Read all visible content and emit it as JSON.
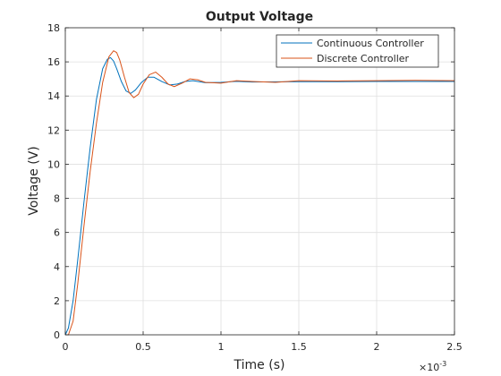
{
  "chart_data": {
    "type": "line",
    "title": "Output Voltage",
    "xlabel": "Time (s)",
    "ylabel": "Voltage (V)",
    "x_exponent_label": "×10",
    "x_exponent_power": "-3",
    "xlim": [
      0,
      2.5
    ],
    "ylim": [
      0,
      18
    ],
    "x_ticks": [
      0,
      0.5,
      1,
      1.5,
      2,
      2.5
    ],
    "x_tick_labels": [
      "0",
      "0.5",
      "1",
      "1.5",
      "2",
      "2.5"
    ],
    "y_ticks": [
      0,
      2,
      4,
      6,
      8,
      10,
      12,
      14,
      16,
      18
    ],
    "y_tick_labels": [
      "0",
      "2",
      "4",
      "6",
      "8",
      "10",
      "12",
      "14",
      "16",
      "18"
    ],
    "grid": true,
    "legend_position": "top-right",
    "series": [
      {
        "name": "Continuous Controller",
        "color": "#0072BD",
        "x": [
          0,
          0.02,
          0.05,
          0.08,
          0.12,
          0.16,
          0.2,
          0.24,
          0.27,
          0.29,
          0.31,
          0.33,
          0.36,
          0.39,
          0.42,
          0.45,
          0.49,
          0.53,
          0.57,
          0.62,
          0.67,
          0.72,
          0.77,
          0.82,
          0.9,
          1.0,
          1.1,
          1.2,
          1.35,
          1.5,
          1.75,
          2.0,
          2.25,
          2.5
        ],
        "y": [
          0,
          0.4,
          2.0,
          4.4,
          7.8,
          11.0,
          13.8,
          15.6,
          16.15,
          16.25,
          16.05,
          15.6,
          14.85,
          14.3,
          14.15,
          14.35,
          14.8,
          15.1,
          15.1,
          14.85,
          14.65,
          14.7,
          14.85,
          14.9,
          14.78,
          14.8,
          14.86,
          14.82,
          14.83,
          14.84,
          14.84,
          14.85,
          14.85,
          14.85
        ]
      },
      {
        "name": "Discrete Controller",
        "color": "#D95319",
        "x": [
          0,
          0.02,
          0.05,
          0.08,
          0.12,
          0.16,
          0.2,
          0.24,
          0.28,
          0.31,
          0.33,
          0.35,
          0.38,
          0.41,
          0.44,
          0.47,
          0.5,
          0.54,
          0.58,
          0.62,
          0.66,
          0.7,
          0.75,
          0.8,
          0.85,
          0.9,
          1.0,
          1.1,
          1.2,
          1.35,
          1.5,
          1.75,
          2.0,
          2.25,
          2.5
        ],
        "y": [
          0,
          0.0,
          0.8,
          3.0,
          6.4,
          9.6,
          12.4,
          14.8,
          16.3,
          16.65,
          16.55,
          16.1,
          15.1,
          14.2,
          13.9,
          14.1,
          14.7,
          15.25,
          15.4,
          15.1,
          14.7,
          14.55,
          14.75,
          15.0,
          14.95,
          14.8,
          14.75,
          14.9,
          14.85,
          14.8,
          14.9,
          14.88,
          14.9,
          14.92,
          14.9
        ]
      }
    ]
  }
}
